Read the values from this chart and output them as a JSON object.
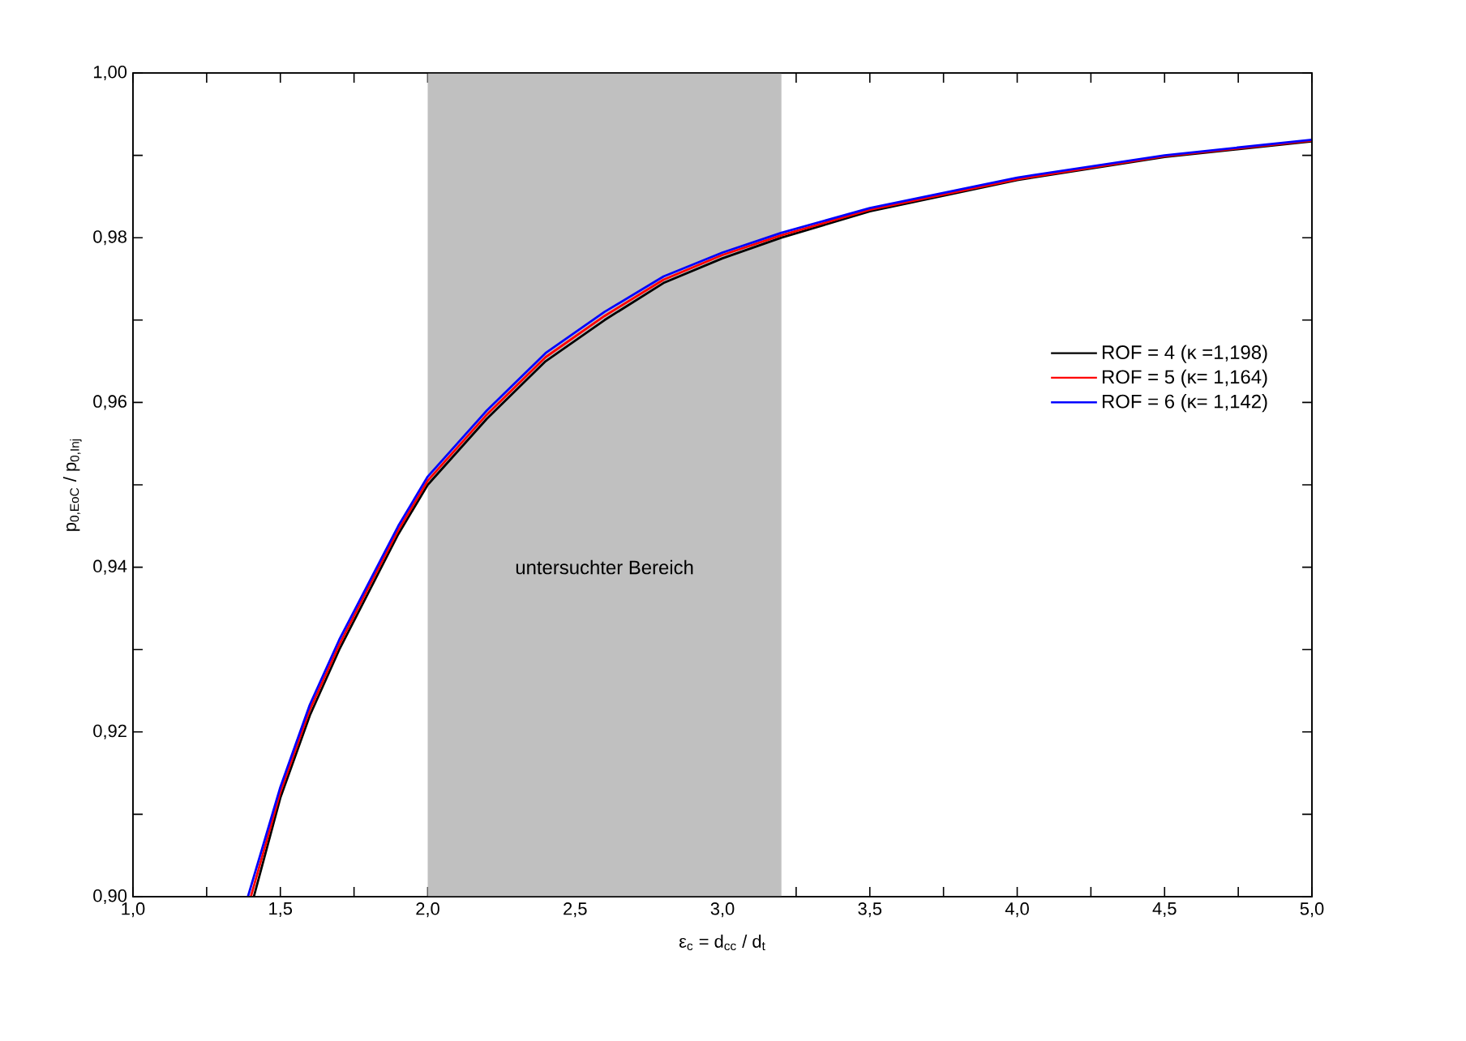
{
  "chart_data": {
    "type": "line",
    "xlabel": "ε$_{c}$ = d$_{cc}$ / d$_{t}$",
    "ylabel": "p$_{0,EoC}$ / p$_{0,Inj}$",
    "xlim": [
      1.0,
      5.0
    ],
    "ylim": [
      0.9,
      1.0
    ],
    "xticks": [
      {
        "value": 1.0,
        "label": "1,0"
      },
      {
        "value": 1.25,
        "label": null
      },
      {
        "value": 1.5,
        "label": "1,5"
      },
      {
        "value": 1.75,
        "label": null
      },
      {
        "value": 2.0,
        "label": "2,0"
      },
      {
        "value": 2.25,
        "label": null
      },
      {
        "value": 2.5,
        "label": "2,5"
      },
      {
        "value": 2.75,
        "label": null
      },
      {
        "value": 3.0,
        "label": "3,0"
      },
      {
        "value": 3.25,
        "label": null
      },
      {
        "value": 3.5,
        "label": "3,5"
      },
      {
        "value": 3.75,
        "label": null
      },
      {
        "value": 4.0,
        "label": "4,0"
      },
      {
        "value": 4.25,
        "label": null
      },
      {
        "value": 4.5,
        "label": "4,5"
      },
      {
        "value": 4.75,
        "label": null
      },
      {
        "value": 5.0,
        "label": "5,0"
      }
    ],
    "yticks": [
      {
        "value": 0.9,
        "label": "0,90"
      },
      {
        "value": 0.91,
        "label": null
      },
      {
        "value": 0.92,
        "label": "0,92"
      },
      {
        "value": 0.93,
        "label": null
      },
      {
        "value": 0.94,
        "label": "0,94"
      },
      {
        "value": 0.95,
        "label": null
      },
      {
        "value": 0.96,
        "label": "0,96"
      },
      {
        "value": 0.97,
        "label": null
      },
      {
        "value": 0.98,
        "label": "0,98"
      },
      {
        "value": 0.99,
        "label": null
      },
      {
        "value": 1.0,
        "label": "1,00"
      }
    ],
    "bands": [
      {
        "axis": "x",
        "from": 2.0,
        "to": 3.2,
        "label": "untersuchter Bereich",
        "color": "#c0c0c0"
      }
    ],
    "legend": "right",
    "grid": false,
    "marker": "none",
    "line_style": "solid",
    "series": [
      {
        "name": "ROF = 4 (κ =1,198)",
        "color": "#000000",
        "x": [
          1.41,
          1.5,
          1.6,
          1.7,
          1.8,
          1.9,
          2.0,
          2.2,
          2.4,
          2.6,
          2.8,
          3.0,
          3.2,
          3.5,
          4.0,
          4.5,
          5.0
        ],
        "values": [
          0.9,
          0.912,
          0.922,
          0.93,
          0.937,
          0.944,
          0.95,
          0.958,
          0.965,
          0.97,
          0.9745,
          0.9775,
          0.98,
          0.9832,
          0.987,
          0.9898,
          0.9917
        ]
      },
      {
        "name": "ROF = 5 (κ= 1,164)",
        "color": "#ff0000",
        "x": [
          1.4,
          1.5,
          1.6,
          1.7,
          1.8,
          1.9,
          2.0,
          2.2,
          2.4,
          2.6,
          2.8,
          3.0,
          3.2,
          3.5,
          4.0,
          4.5,
          5.0
        ],
        "values": [
          0.9,
          0.9127,
          0.9227,
          0.9306,
          0.9376,
          0.9445,
          0.9505,
          0.9585,
          0.9655,
          0.9705,
          0.9749,
          0.9779,
          0.9803,
          0.9834,
          0.9871,
          0.9899,
          0.9918
        ]
      },
      {
        "name": "ROF = 6 (κ= 1,142)",
        "color": "#0000ff",
        "x": [
          1.39,
          1.5,
          1.6,
          1.7,
          1.8,
          1.9,
          2.0,
          2.2,
          2.4,
          2.6,
          2.8,
          3.0,
          3.2,
          3.5,
          4.0,
          4.5,
          5.0
        ],
        "values": [
          0.9,
          0.9133,
          0.9233,
          0.9312,
          0.9381,
          0.945,
          0.951,
          0.959,
          0.966,
          0.971,
          0.9753,
          0.9782,
          0.9806,
          0.9836,
          0.9873,
          0.99,
          0.9919
        ]
      }
    ]
  }
}
